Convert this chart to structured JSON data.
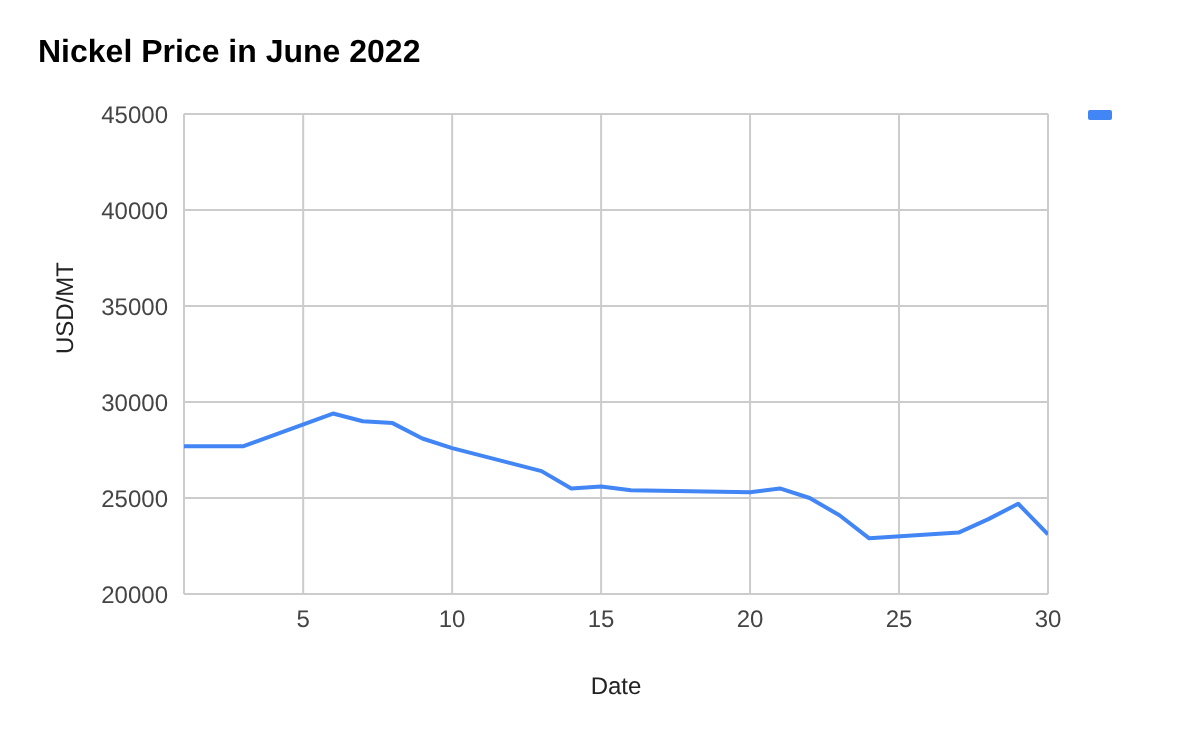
{
  "chart_data": {
    "type": "line",
    "title": "Nickel Price in June 2022",
    "xlabel": "Date",
    "ylabel": "USD/MT",
    "x": [
      1,
      3,
      6,
      7,
      8,
      9,
      10,
      13,
      14,
      15,
      16,
      20,
      21,
      22,
      23,
      24,
      27,
      28,
      29,
      30
    ],
    "series": [
      {
        "color": "#4285f4",
        "values": [
          27700,
          27700,
          29400,
          29000,
          28900,
          28100,
          27600,
          26400,
          25500,
          25600,
          25400,
          25300,
          25500,
          25000,
          24100,
          22900,
          23200,
          23900,
          24700,
          23100
        ]
      }
    ],
    "xlim": [
      1,
      30
    ],
    "xticks": [
      5,
      10,
      15,
      20,
      25,
      30
    ],
    "ylim": [
      20000,
      45000
    ],
    "yticks": [
      20000,
      25000,
      30000,
      35000,
      40000,
      45000
    ],
    "grid": true,
    "marker": "none",
    "line_style": "solid"
  }
}
